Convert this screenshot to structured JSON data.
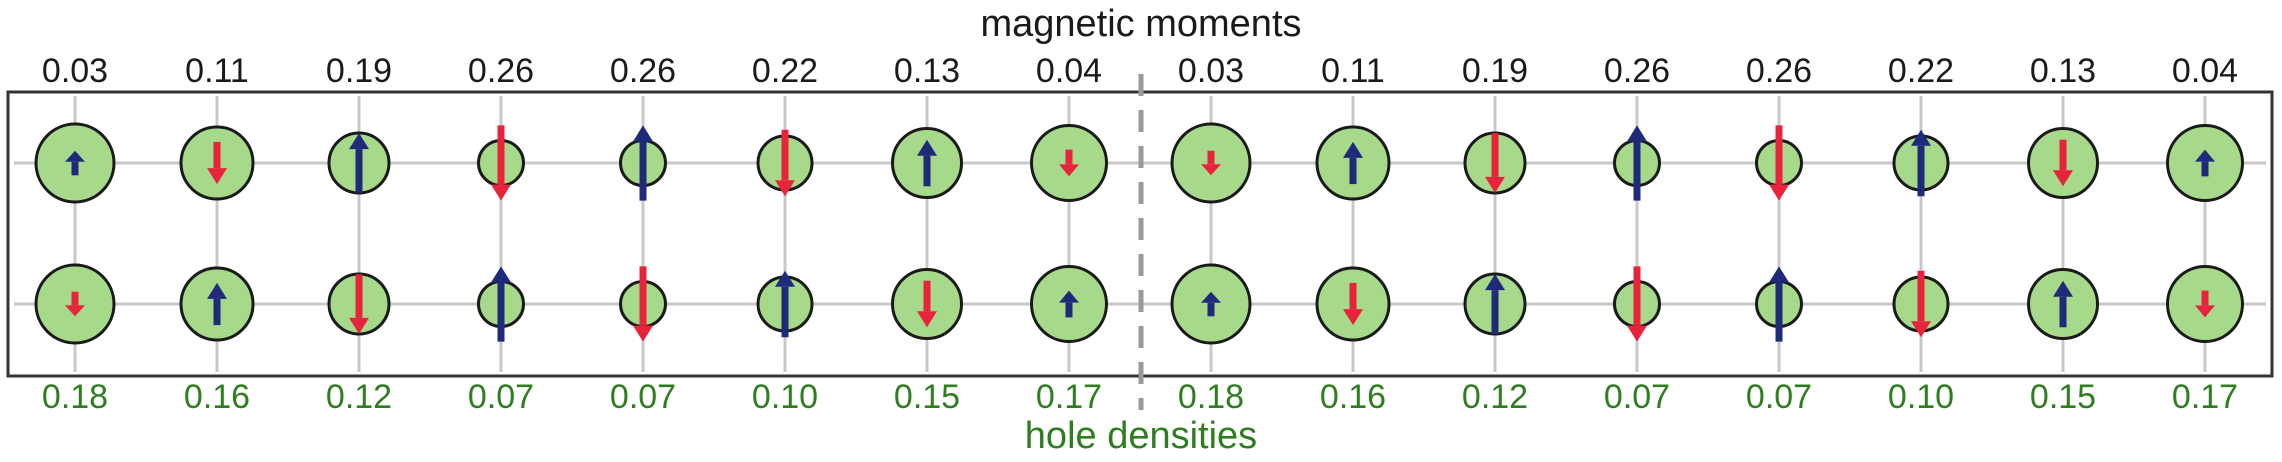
{
  "title_top": "magnetic moments",
  "title_bottom": "hole densities",
  "magnetic_moments": [
    "0.03",
    "0.11",
    "0.19",
    "0.26",
    "0.26",
    "0.22",
    "0.13",
    "0.04",
    "0.03",
    "0.11",
    "0.19",
    "0.26",
    "0.26",
    "0.22",
    "0.13",
    "0.04"
  ],
  "hole_densities": [
    "0.18",
    "0.16",
    "0.12",
    "0.07",
    "0.07",
    "0.10",
    "0.15",
    "0.17",
    "0.18",
    "0.16",
    "0.12",
    "0.07",
    "0.07",
    "0.10",
    "0.15",
    "0.17"
  ],
  "colors": {
    "circle_fill": "#a6d98a",
    "circle_stroke": "#1a1a1a",
    "spin_up": "#1f2a7a",
    "spin_down": "#e8243c",
    "grid": "#c8c8c8",
    "divider": "#9a9a9a",
    "moment_text": "#1a1a1a",
    "density_text": "#2e7d1e",
    "frame": "#333333"
  },
  "rows": [
    {
      "spins": [
        "up",
        "down",
        "up",
        "down",
        "up",
        "down",
        "up",
        "down",
        "down",
        "up",
        "down",
        "up",
        "down",
        "up",
        "down",
        "up"
      ]
    },
    {
      "spins": [
        "down",
        "up",
        "down",
        "up",
        "down",
        "up",
        "down",
        "up",
        "up",
        "down",
        "up",
        "down",
        "up",
        "down",
        "up",
        "down"
      ]
    }
  ]
}
